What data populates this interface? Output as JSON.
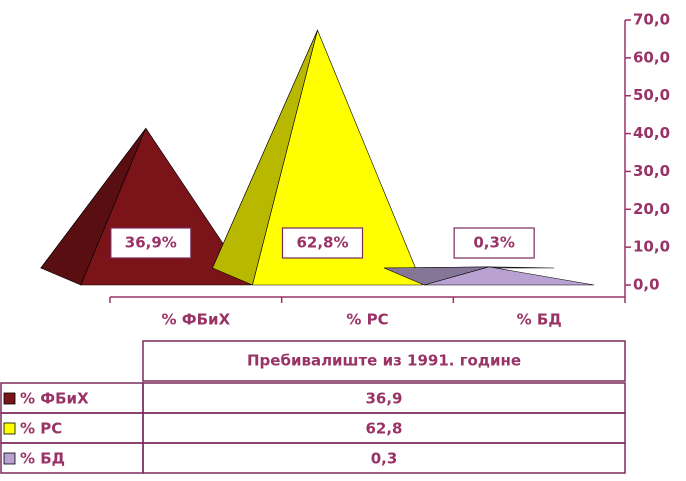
{
  "chart_data": {
    "type": "pyramid3d",
    "categories": [
      "% ФБиХ",
      "% РС",
      "% БД"
    ],
    "values": [
      36.9,
      62.8,
      0.3
    ],
    "value_labels": [
      "36,9%",
      "62,8%",
      "0,3%"
    ],
    "colors": [
      "#7b1418",
      "#ffff00",
      "#b9a2d2"
    ],
    "series_name": "Пребивалиште из 1991. године",
    "table_labels": [
      "36,9",
      "62,8",
      "0,3"
    ],
    "ylim": [
      0,
      70
    ],
    "yticks": [
      {
        "value": 0,
        "label": "0,0"
      },
      {
        "value": 10,
        "label": "10,0"
      },
      {
        "value": 20,
        "label": "20,0"
      },
      {
        "value": 30,
        "label": "30,0"
      },
      {
        "value": 40,
        "label": "40,0"
      },
      {
        "value": 50,
        "label": "50,0"
      },
      {
        "value": 60,
        "label": "60,0"
      },
      {
        "value": 70,
        "label": "70,0"
      }
    ]
  }
}
